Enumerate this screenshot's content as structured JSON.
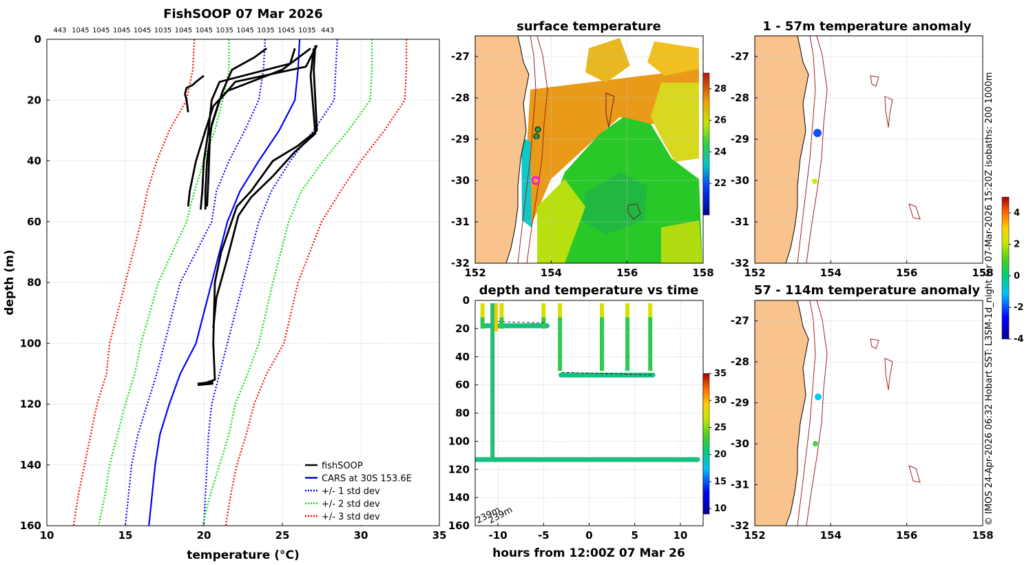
{
  "chart_data": [
    {
      "type": "line",
      "title": "FishSOOP 07 Mar 2026",
      "xlabel": "temperature (°C)",
      "ylabel": "depth (m)",
      "xlim": [
        10,
        35
      ],
      "ylim": [
        160,
        0
      ],
      "xticks": [
        "10",
        "15",
        "20",
        "25",
        "30",
        "35"
      ],
      "yticks": [
        "0",
        "20",
        "40",
        "60",
        "80",
        "100",
        "120",
        "140",
        "160"
      ],
      "top_labels": [
        "443",
        "1045",
        "1045",
        "1045",
        "1045",
        "1035",
        "1045",
        "1045",
        "1035",
        "1045",
        "1035",
        "1045",
        "1035",
        "443"
      ],
      "legend": [
        {
          "label": "fishSOOP",
          "color": "#000000",
          "style": "solid"
        },
        {
          "label": "CARS at 30S 153.6E",
          "color": "#0000ff",
          "style": "solid"
        },
        {
          "label": "+/- 1 std dev",
          "color": "#0000ff",
          "style": "dotted"
        },
        {
          "label": "+/- 2 std dev",
          "color": "#00dd00",
          "style": "dotted"
        },
        {
          "label": "+/- 3 std dev",
          "color": "#ff0000",
          "style": "dotted"
        }
      ],
      "series": [
        {
          "name": "CARS at 30S 153.6E",
          "color": "#0000ff",
          "style": "solid",
          "temperature": [
            26.1,
            26.0,
            25.8,
            24.8,
            23.5,
            22.3,
            21.5,
            20.5,
            19.5,
            18.5,
            17.8,
            17.2,
            16.9,
            16.7,
            16.5
          ],
          "depth": [
            0,
            10,
            20,
            30,
            40,
            50,
            60,
            80,
            100,
            110,
            120,
            130,
            140,
            150,
            160
          ]
        },
        {
          "name": "+1 std dev",
          "color": "#0000ff",
          "style": "dotted",
          "temperature": [
            28.5,
            28.4,
            28.3,
            27.0,
            25.5,
            24.3,
            23.5,
            22.5,
            21.5,
            21.0,
            20.5,
            20.3,
            20.2,
            20.1,
            20.0
          ],
          "depth": [
            0,
            10,
            20,
            30,
            40,
            50,
            60,
            80,
            100,
            110,
            120,
            130,
            140,
            150,
            160
          ]
        },
        {
          "name": "-1 std dev",
          "color": "#0000ff",
          "style": "dotted",
          "temperature": [
            23.9,
            23.8,
            23.5,
            22.6,
            21.6,
            20.8,
            20.5,
            18.5,
            17.5,
            17.0,
            16.4,
            15.8,
            15.4,
            15.2,
            15.0
          ],
          "depth": [
            0,
            10,
            20,
            30,
            40,
            50,
            60,
            80,
            100,
            110,
            120,
            130,
            140,
            150,
            160
          ]
        },
        {
          "name": "+2 std dev",
          "color": "#00dd00",
          "style": "dotted",
          "temperature": [
            30.7,
            30.7,
            30.6,
            29.2,
            27.6,
            26.2,
            25.4,
            24.4,
            23.5,
            22.8,
            22.0,
            21.6,
            21.0,
            20.4,
            19.9
          ],
          "depth": [
            0,
            10,
            20,
            30,
            40,
            50,
            60,
            80,
            100,
            110,
            120,
            130,
            140,
            150,
            160
          ]
        },
        {
          "name": "-2 std dev",
          "color": "#00dd00",
          "style": "dotted",
          "temperature": [
            21.6,
            21.6,
            21.2,
            20.7,
            20.0,
            19.4,
            18.9,
            17.1,
            16.0,
            15.6,
            15.0,
            14.5,
            14.0,
            13.7,
            13.3
          ],
          "depth": [
            0,
            10,
            20,
            30,
            40,
            50,
            60,
            80,
            100,
            110,
            120,
            130,
            140,
            150,
            160
          ]
        },
        {
          "name": "+3 std dev",
          "color": "#ff0000",
          "style": "dotted",
          "temperature": [
            32.9,
            32.9,
            32.8,
            31.5,
            30.0,
            28.7,
            27.5,
            26.0,
            25.1,
            24.0,
            23.2,
            22.7,
            22.1,
            21.7,
            21.4
          ],
          "depth": [
            0,
            10,
            20,
            30,
            40,
            50,
            60,
            80,
            100,
            110,
            120,
            130,
            140,
            150,
            160
          ]
        },
        {
          "name": "-3 std dev",
          "color": "#ff0000",
          "style": "dotted",
          "temperature": [
            19.4,
            19.3,
            18.9,
            17.8,
            17.0,
            16.4,
            16.0,
            15.0,
            14.0,
            13.8,
            13.2,
            12.8,
            12.4,
            12.0,
            11.7
          ],
          "depth": [
            0,
            10,
            20,
            30,
            40,
            50,
            60,
            80,
            100,
            110,
            120,
            130,
            140,
            150,
            160
          ]
        },
        {
          "name": "fishSOOP profile A",
          "color": "#000000",
          "style": "solid",
          "temperature": [
            25.8,
            25.5,
            21.0,
            20.5,
            20.3,
            20.0,
            19.9,
            19.8
          ],
          "depth": [
            3,
            8,
            14,
            20,
            30,
            40,
            50,
            56
          ]
        },
        {
          "name": "fishSOOP profile B",
          "color": "#000000",
          "style": "solid",
          "temperature": [
            26.8,
            25.0,
            21.5,
            20.6,
            20.1,
            19.5,
            19.1,
            19.0
          ],
          "depth": [
            3,
            10,
            17,
            22,
            30,
            40,
            50,
            55
          ]
        },
        {
          "name": "fishSOOP profile C",
          "color": "#000000",
          "style": "solid",
          "temperature": [
            27.2,
            26.5,
            22.0,
            21.0,
            20.5,
            20.2,
            20.1,
            20.1
          ],
          "depth": [
            2,
            9,
            14,
            20,
            28,
            40,
            50,
            56
          ]
        },
        {
          "name": "fishSOOP profile D",
          "color": "#000000",
          "style": "solid",
          "temperature": [
            24.0,
            23.2,
            21.8,
            21.2,
            20.4,
            20.3,
            20.2
          ],
          "depth": [
            3,
            6,
            10,
            17,
            30,
            45,
            55
          ]
        },
        {
          "name": "fishSOOP profile E",
          "color": "#000000",
          "style": "solid",
          "temperature": [
            27.1,
            27.0,
            27.2,
            26.0,
            24.4,
            23.0,
            22.1,
            21.1,
            20.7,
            20.6,
            20.7,
            20.1
          ],
          "depth": [
            2,
            10,
            30,
            35,
            40,
            50,
            55,
            70,
            80,
            100,
            112,
            113
          ]
        },
        {
          "name": "fishSOOP profile F",
          "color": "#000000",
          "style": "solid",
          "temperature": [
            27.0,
            26.8,
            27.1,
            25.8,
            24.4,
            23.0,
            22.2,
            21.5,
            20.8,
            20.6
          ],
          "depth": [
            3,
            12,
            31,
            37,
            45,
            52,
            58,
            72,
            85,
            95
          ]
        },
        {
          "name": "fishSOOP profile G",
          "color": "#000000",
          "style": "solid",
          "temperature": [
            20.0,
            19.5,
            19.3,
            18.9,
            18.8,
            18.9,
            19.0
          ],
          "depth": [
            12,
            14,
            15,
            16,
            18,
            20,
            24
          ]
        }
      ]
    },
    {
      "type": "heatmap",
      "title": "surface temperature",
      "xlim": [
        152,
        158
      ],
      "ylim": [
        -32,
        -26.5
      ],
      "xticks": [
        "152",
        "154",
        "156",
        "158"
      ],
      "yticks": [
        "-27",
        "-28",
        "-29",
        "-30",
        "-31",
        "-32"
      ],
      "colorbar": {
        "min": 20,
        "max": 29,
        "ticks": [
          "22",
          "24",
          "26",
          "28"
        ]
      }
    },
    {
      "type": "scatter",
      "title": "1 - 57m temperature anomaly",
      "xlim": [
        152,
        158
      ],
      "ylim": [
        -32,
        -26.5
      ],
      "xticks": [
        "152",
        "154",
        "156",
        "158"
      ],
      "yticks": [
        "-27",
        "-28",
        "-29",
        "-30",
        "-31",
        "-32"
      ],
      "points": [
        {
          "lon": 153.68,
          "lat": -28.85,
          "anomaly": -3.2
        },
        {
          "lon": 153.6,
          "lat": -30.0,
          "anomaly": 1.0
        }
      ]
    },
    {
      "type": "scatter",
      "title": "depth and temperature vs time",
      "xlabel": "hours from 12:00Z 07 Mar 26",
      "xlim": [
        -12.5,
        12.5
      ],
      "ylim": [
        160,
        0
      ],
      "xticks": [
        "-10",
        "-5",
        "0",
        "5",
        "10"
      ],
      "yticks": [
        "0",
        "20",
        "40",
        "60",
        "80",
        "100",
        "120",
        "140",
        "160"
      ],
      "annotations": [
        "239m",
        "239m"
      ],
      "colorbar": {
        "min": 9,
        "max": 35,
        "ticks": [
          "10",
          "15",
          "20",
          "25",
          "30",
          "35"
        ]
      },
      "segments": [
        {
          "t_start": -12.5,
          "t_end": 11.9,
          "depth": 113,
          "temperature": 21
        },
        {
          "t_start": -3.1,
          "t_end": 7.0,
          "depth": 53,
          "temperature": 22
        },
        {
          "t_start": -11.6,
          "t_end": -4.6,
          "depth": 18,
          "temperature": 23
        }
      ]
    },
    {
      "type": "scatter",
      "title": "57 - 114m temperature anomaly",
      "xlim": [
        152,
        158
      ],
      "ylim": [
        -32,
        -26.5
      ],
      "xticks": [
        "152",
        "154",
        "156",
        "158"
      ],
      "yticks": [
        "-27",
        "-28",
        "-29",
        "-30",
        "-31",
        "-32"
      ],
      "colorbar": {
        "min": -4,
        "max": 5,
        "ticks": [
          "-4",
          "-2",
          "0",
          "2",
          "4"
        ]
      },
      "points": [
        {
          "lon": 153.68,
          "lat": -28.85,
          "anomaly": -1.3
        },
        {
          "lon": 153.55,
          "lat": -30.1,
          "anomaly": 0.6
        }
      ]
    }
  ],
  "side_caption": "© IMOS 24-Apr-2026 06:32 Hobart SST: L3SM-1d_night for 07-Mar-2026 15:20Z isobaths: 200  1000m"
}
